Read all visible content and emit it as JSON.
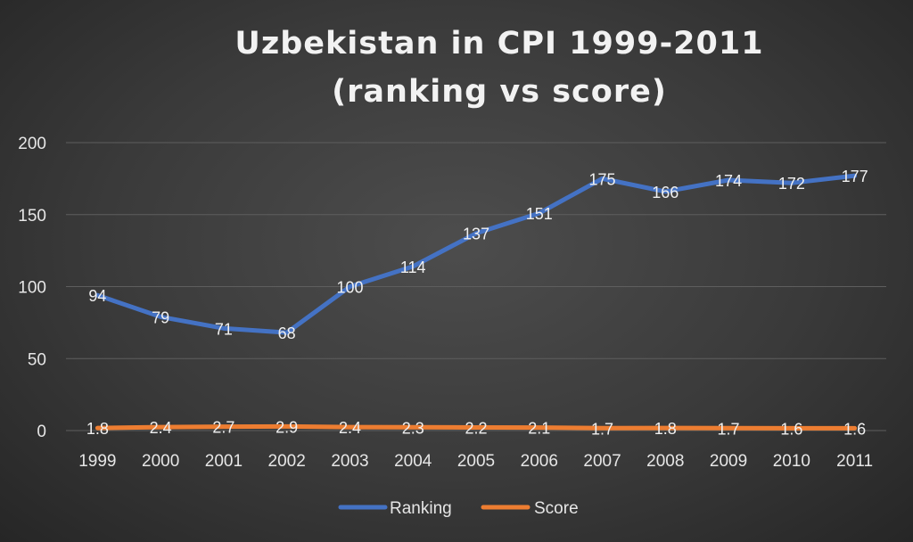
{
  "chart_data": {
    "type": "line",
    "title": "Uzbekistan in CPI 1999-2011",
    "subtitle": "(ranking vs score)",
    "categories": [
      "1999",
      "2000",
      "2001",
      "2002",
      "2003",
      "2004",
      "2005",
      "2006",
      "2007",
      "2008",
      "2009",
      "2010",
      "2011"
    ],
    "series": [
      {
        "name": "Ranking",
        "color": "#4472c4",
        "values": [
          94,
          79,
          71,
          68,
          100,
          114,
          137,
          151,
          175,
          166,
          174,
          172,
          177
        ],
        "labels": [
          "94",
          "79",
          "71",
          "68",
          "100",
          "114",
          "137",
          "151",
          "175",
          "166",
          "174",
          "172",
          "177"
        ]
      },
      {
        "name": "Score",
        "color": "#ed7d31",
        "values": [
          1.8,
          2.4,
          2.7,
          2.9,
          2.4,
          2.3,
          2.2,
          2.1,
          1.7,
          1.8,
          1.7,
          1.6,
          1.6
        ],
        "labels": [
          "1.8",
          "2.4",
          "2.7",
          "2.9",
          "2.4",
          "2.3",
          "2.2",
          "2.1",
          "1.7",
          "1.8",
          "1.7",
          "1.6",
          "1.6"
        ]
      }
    ],
    "ylim": [
      0,
      200
    ],
    "yticks": [
      "0",
      "50",
      "100",
      "150",
      "200"
    ],
    "grid": true,
    "legend": "bottom",
    "xlabel": "",
    "ylabel": ""
  }
}
